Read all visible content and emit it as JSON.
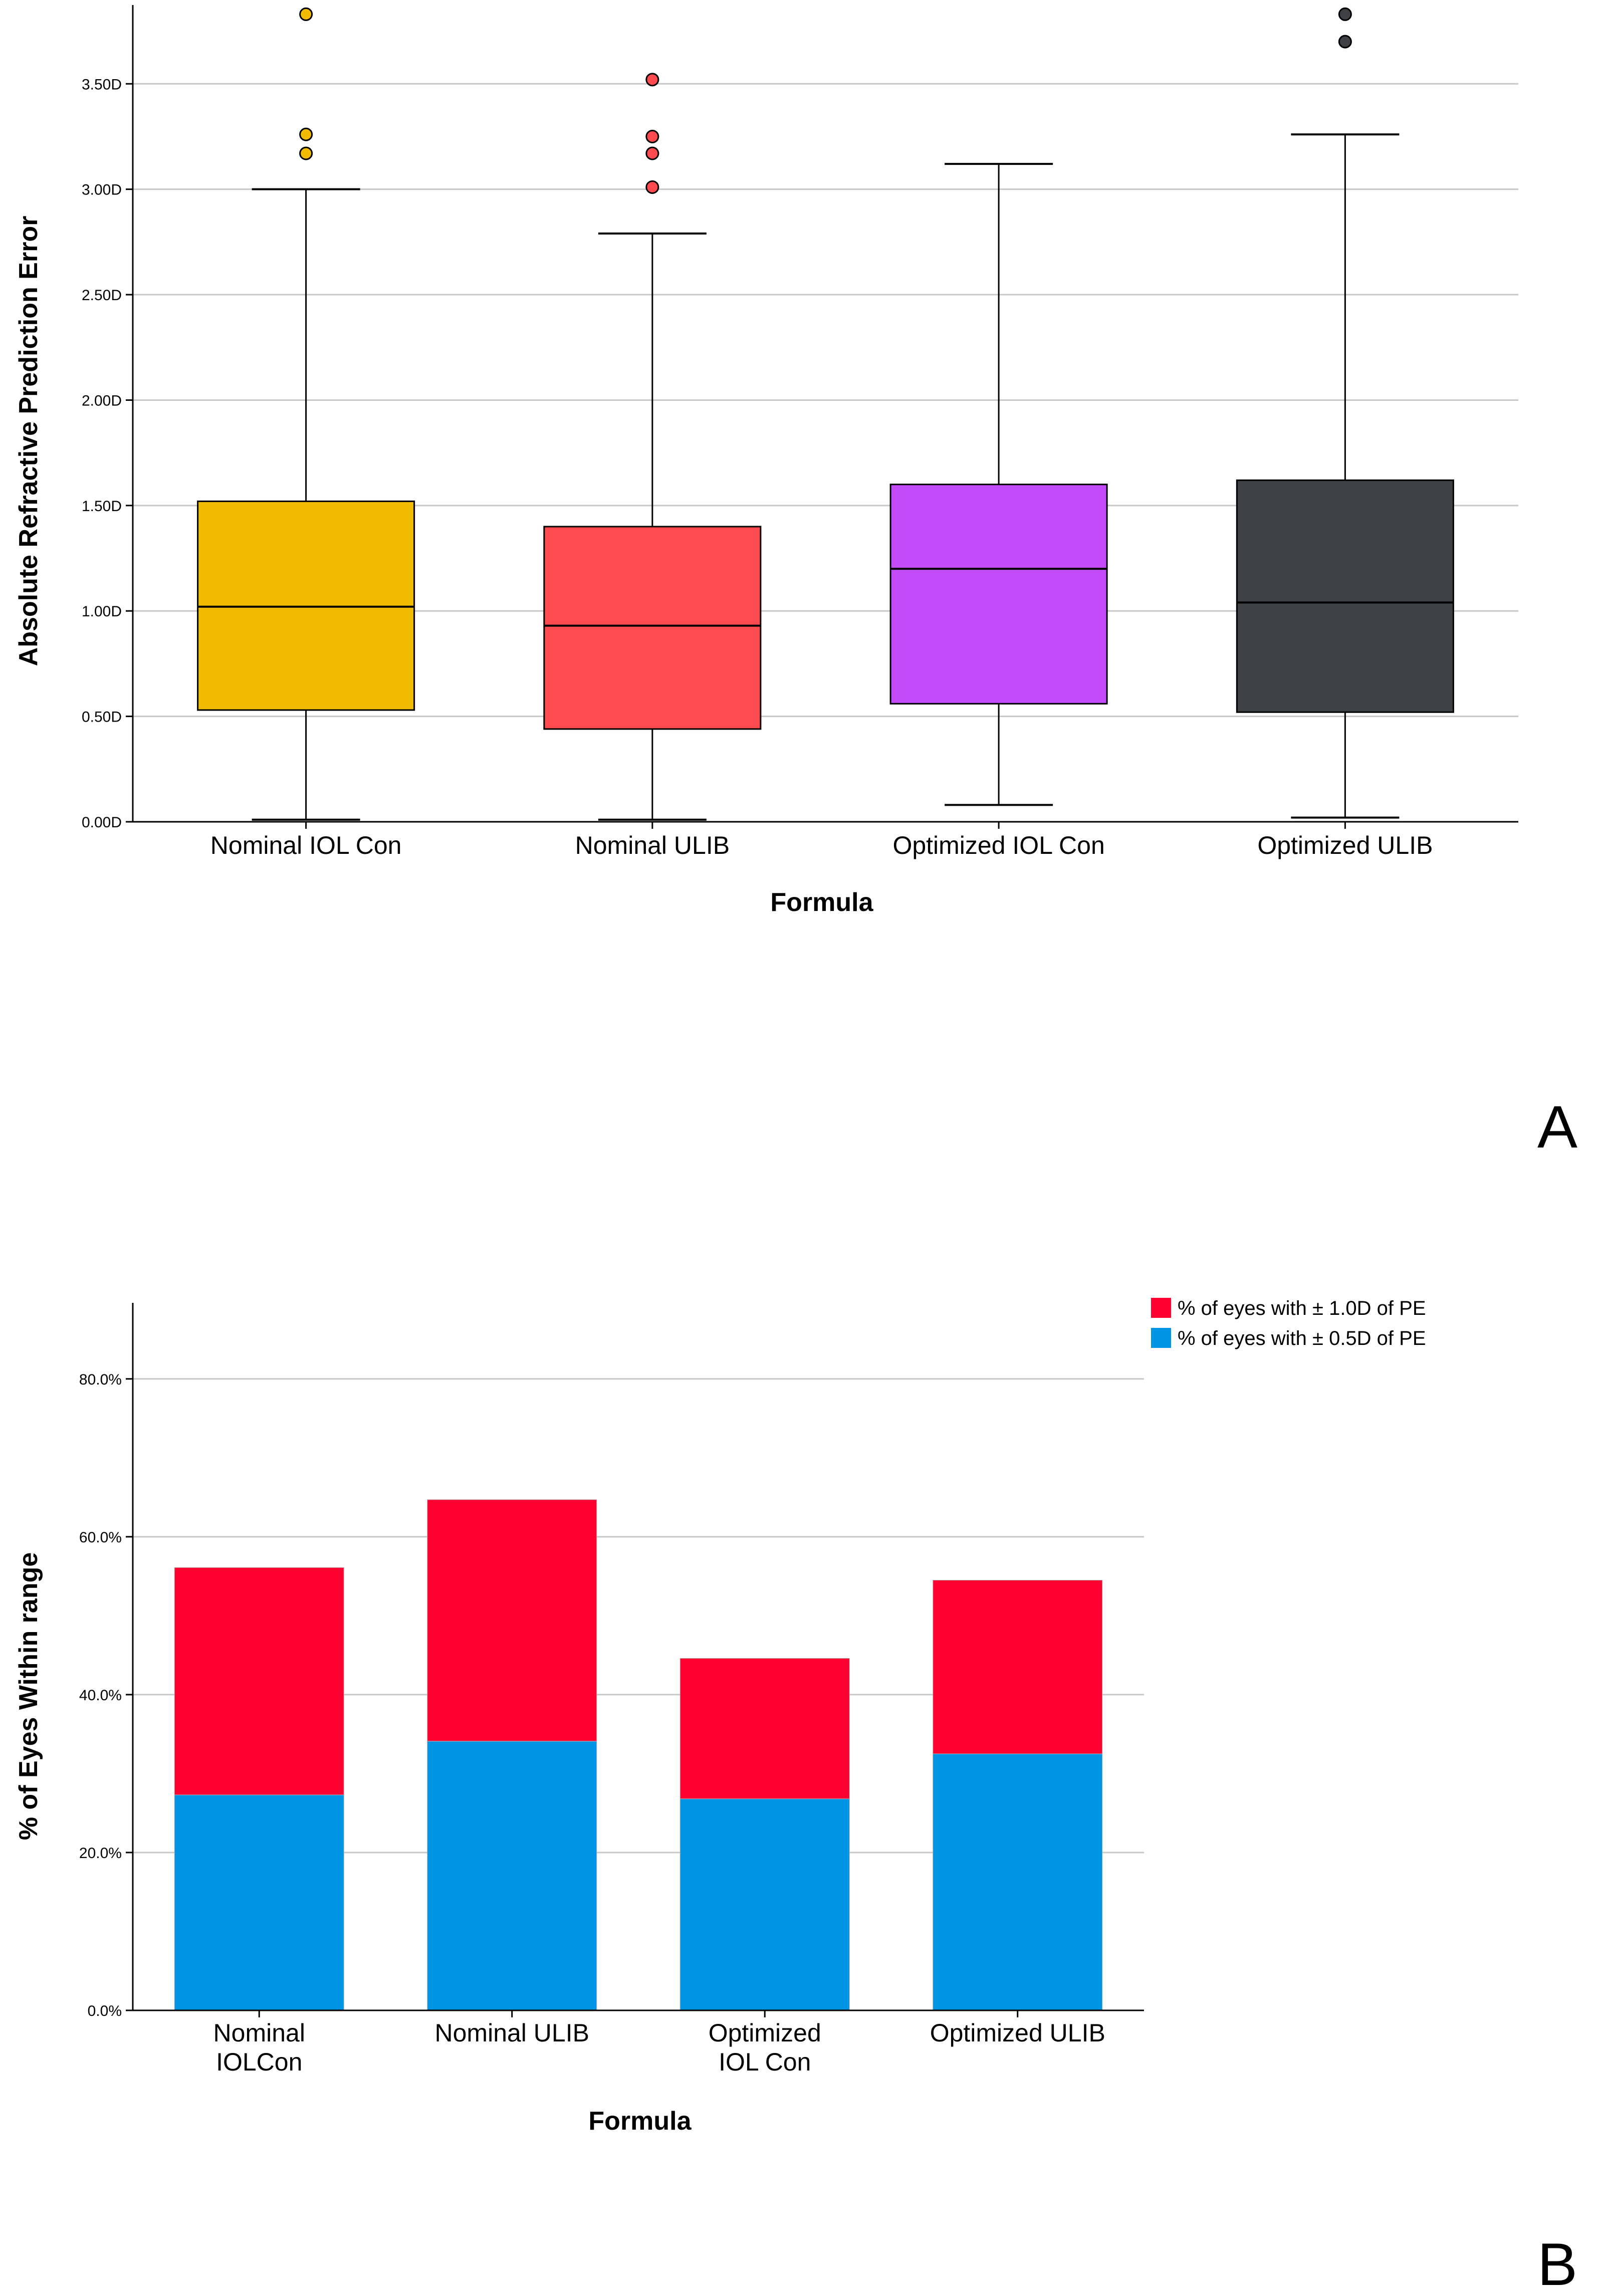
{
  "panels": {
    "a_label": "A",
    "b_label": "B"
  },
  "chart_data": [
    {
      "type": "boxplot",
      "xlabel": "Formula",
      "ylabel": "Absolute Refractive Prediction Error",
      "ylim": [
        0,
        3.85
      ],
      "yticks": [
        0,
        0.5,
        1.0,
        1.5,
        2.0,
        2.5,
        3.0,
        3.5
      ],
      "ytick_labels": [
        "0.00D",
        "0.50D",
        "1.00D",
        "1.50D",
        "2.00D",
        "2.50D",
        "3.00D",
        "3.50D"
      ],
      "grid": true,
      "categories": [
        "Nominal IOL Con",
        "Nominal ULIB",
        "Optimized IOL Con",
        "Optimized ULIB"
      ],
      "colors": [
        "#f0bb00",
        "#ff4a4f",
        "#c34bfa",
        "#3f4245"
      ],
      "boxes": [
        {
          "min": 0.01,
          "q1": 0.53,
          "median": 1.02,
          "q3": 1.52,
          "max": 3.0,
          "outliers": [
            3.83,
            3.26,
            3.17
          ]
        },
        {
          "min": 0.01,
          "q1": 0.44,
          "median": 0.93,
          "q3": 1.4,
          "max": 2.79,
          "outliers": [
            3.52,
            3.25,
            3.17,
            3.01
          ]
        },
        {
          "min": 0.08,
          "q1": 0.56,
          "median": 1.2,
          "q3": 1.6,
          "max": 3.12,
          "outliers": []
        },
        {
          "min": 0.02,
          "q1": 0.52,
          "median": 1.04,
          "q3": 1.62,
          "max": 3.26,
          "outliers": [
            3.83,
            3.7
          ]
        }
      ]
    },
    {
      "type": "stacked-bar",
      "xlabel": "Formula",
      "ylabel": "% of Eyes Within range",
      "ylim": [
        0,
        89
      ],
      "yticks": [
        0,
        20,
        40,
        60,
        80
      ],
      "ytick_labels": [
        "0.0%",
        "20.0%",
        "40.0%",
        "60.0%",
        "80.0%"
      ],
      "grid": true,
      "legend_position": "top-right",
      "categories": [
        [
          "Nominal",
          "IOLCon"
        ],
        [
          "Nominal ULIB"
        ],
        [
          "Optimized",
          "IOL Con"
        ],
        [
          "Optimized ULIB"
        ]
      ],
      "series": [
        {
          "name": "% of eyes with ± 0.5D of PE",
          "color": "#0095e4",
          "values": [
            27.3,
            34.1,
            26.8,
            32.5
          ]
        },
        {
          "name": "% of eyes with ± 1.0D of PE",
          "color": "#ff0030",
          "values": [
            28.8,
            30.6,
            17.8,
            22.0
          ]
        }
      ]
    }
  ]
}
